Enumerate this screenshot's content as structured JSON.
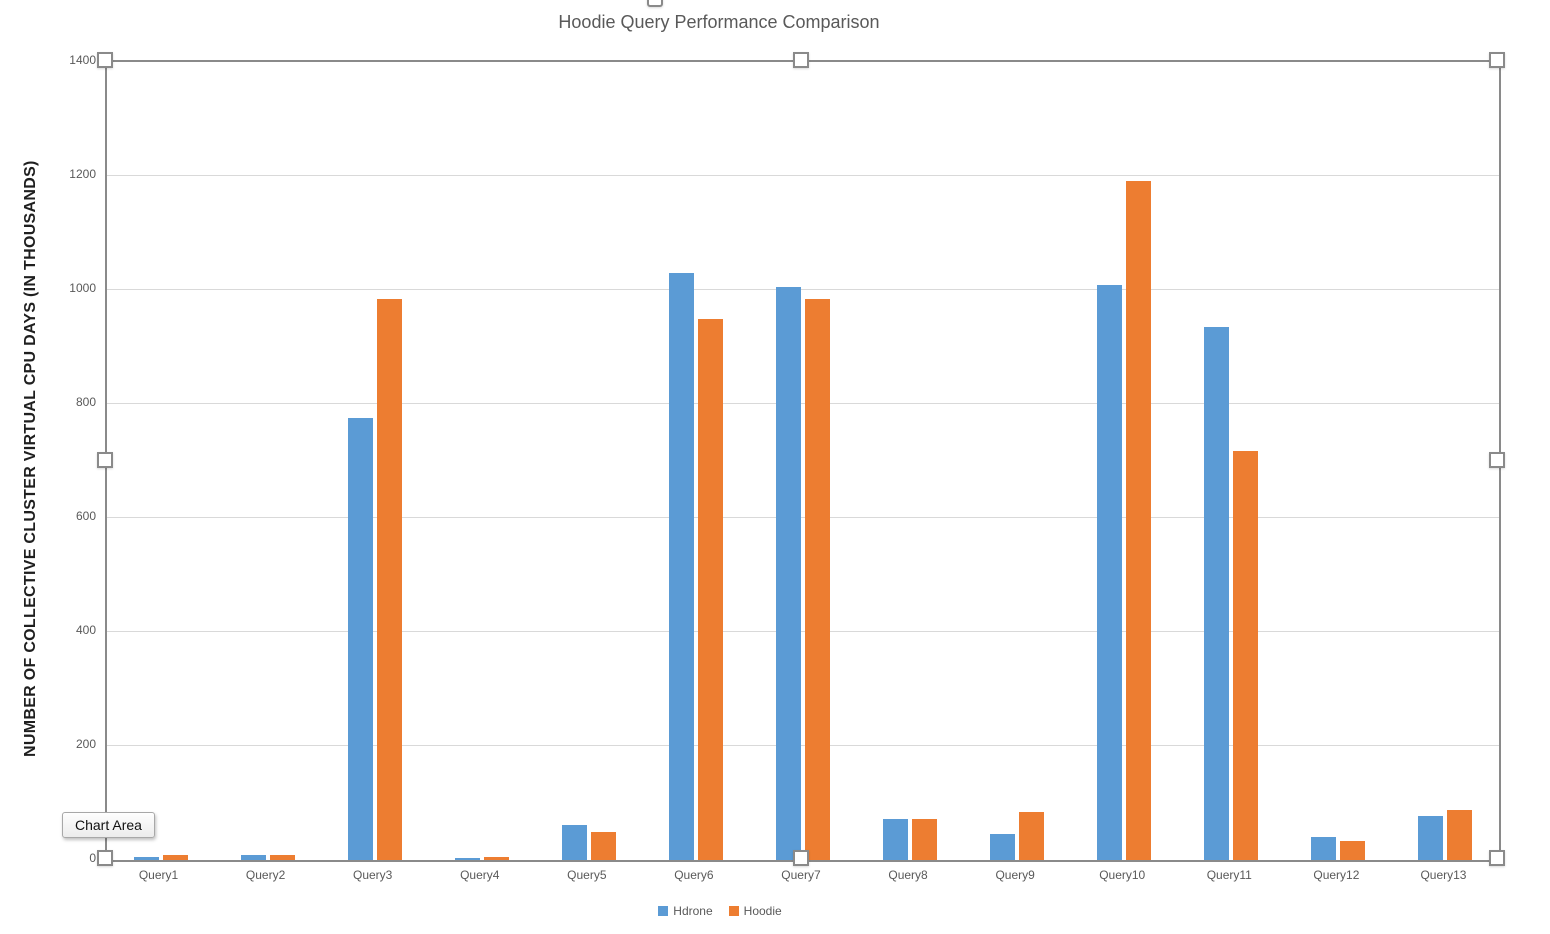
{
  "tooltip": {
    "label": "Chart Area"
  },
  "colors": {
    "grid": "#d9d9d9",
    "axis_text": "#595959",
    "title_text": "#595959",
    "selection_border": "#8a8a8a",
    "hdrone": "#5B9BD5",
    "hoodie": "#ED7D31"
  },
  "chart_data": {
    "type": "bar",
    "title": "Hoodie Query Performance Comparison",
    "xlabel": "",
    "ylabel": "NUMBER OF COLLECTIVE CLUSTER VIRTUAL CPU DAYS (IN THOUSANDS)",
    "ylim": [
      0,
      1400
    ],
    "yticks": [
      0,
      200,
      400,
      600,
      800,
      1000,
      1200,
      1400
    ],
    "grid": true,
    "legend_position": "bottom",
    "categories": [
      "Query1",
      "Query2",
      "Query3",
      "Query4",
      "Query5",
      "Query6",
      "Query7",
      "Query8",
      "Query9",
      "Query10",
      "Query11",
      "Query12",
      "Query13"
    ],
    "series": [
      {
        "name": "Hdrone",
        "color": "#5B9BD5",
        "values": [
          5,
          9,
          775,
          4,
          62,
          1030,
          1005,
          72,
          46,
          1008,
          935,
          40,
          78
        ]
      },
      {
        "name": "Hoodie",
        "color": "#ED7D31",
        "values": [
          9,
          9,
          985,
          5,
          50,
          950,
          985,
          72,
          85,
          1192,
          718,
          33,
          87
        ]
      }
    ]
  }
}
